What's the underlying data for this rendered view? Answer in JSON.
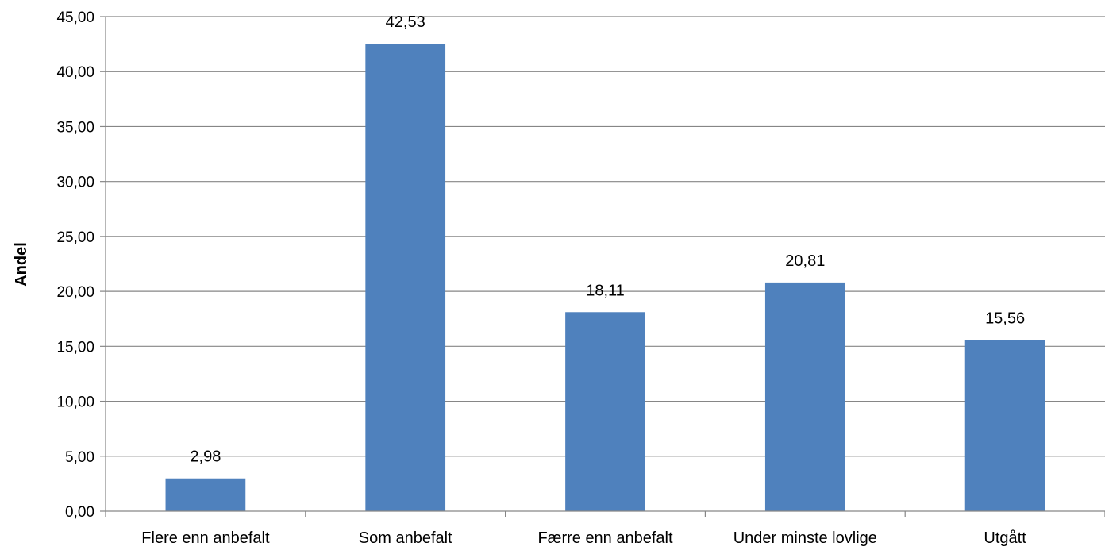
{
  "chart_data": {
    "type": "bar",
    "title": "",
    "xlabel": "",
    "ylabel": "Andel",
    "categories": [
      "Flere enn anbefalt",
      "Som anbefalt",
      "Færre enn anbefalt",
      "Under minste lovlige",
      "Utgått"
    ],
    "values": [
      2.98,
      42.53,
      18.11,
      20.81,
      15.56
    ],
    "data_labels": [
      "2,98",
      "42,53",
      "18,11",
      "20,81",
      "15,56"
    ],
    "ylim": [
      0,
      45
    ],
    "yticks": [
      0,
      5,
      10,
      15,
      20,
      25,
      30,
      35,
      40,
      45
    ],
    "ytick_labels": [
      "0,00",
      "5,00",
      "10,00",
      "15,00",
      "20,00",
      "25,00",
      "30,00",
      "35,00",
      "40,00",
      "45,00"
    ],
    "grid": true,
    "legend": "none",
    "colors": {
      "bar": "#4f81bd",
      "grid": "#868686",
      "axis": "#868686"
    }
  }
}
